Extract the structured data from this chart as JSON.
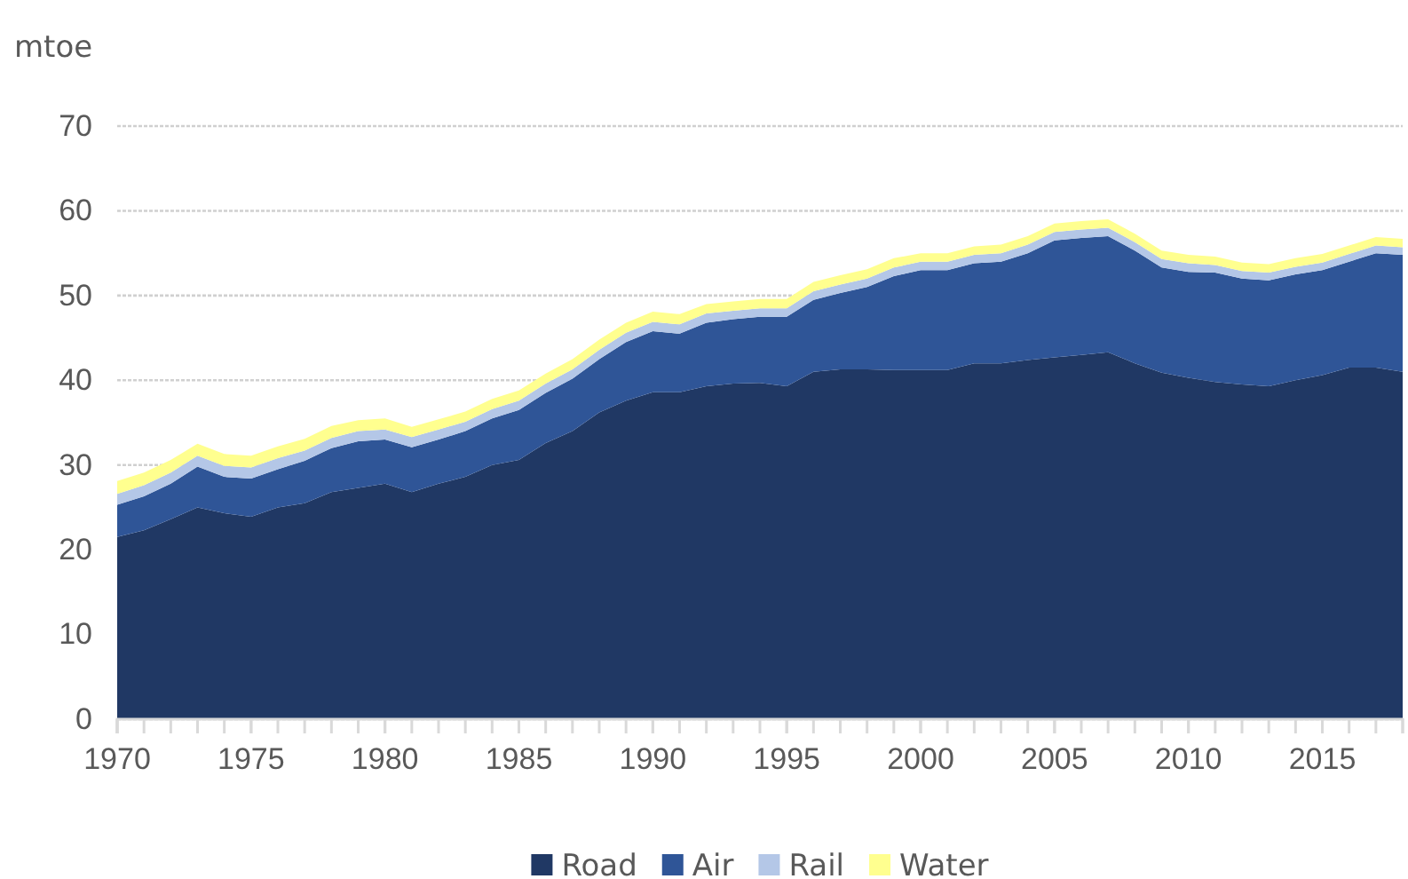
{
  "chart_data": {
    "type": "area",
    "stacked": true,
    "ylabel": "mtoe",
    "x": [
      1970,
      1971,
      1972,
      1973,
      1974,
      1975,
      1976,
      1977,
      1978,
      1979,
      1980,
      1981,
      1982,
      1983,
      1984,
      1985,
      1986,
      1987,
      1988,
      1989,
      1990,
      1991,
      1992,
      1993,
      1994,
      1995,
      1996,
      1997,
      1998,
      1999,
      2000,
      2001,
      2002,
      2003,
      2004,
      2005,
      2006,
      2007,
      2008,
      2009,
      2010,
      2011,
      2012,
      2013,
      2014,
      2015,
      2016,
      2017,
      2018
    ],
    "series": [
      {
        "name": "Road",
        "color": "#203864",
        "values": [
          21.5,
          22.3,
          23.6,
          25,
          24.3,
          23.9,
          25,
          25.5,
          26.8,
          27.3,
          27.8,
          26.8,
          27.8,
          28.6,
          30,
          30.6,
          32.6,
          34,
          36.2,
          37.6,
          38.6,
          38.6,
          39.3,
          39.6,
          39.7,
          39.3,
          41,
          41.3,
          41.3,
          41.2,
          41.2,
          41.2,
          42,
          42,
          42.4,
          42.7,
          43,
          43.3,
          42,
          40.9,
          40.3,
          39.8,
          39.5,
          39.3,
          40,
          40.6,
          41.5,
          41.5,
          41
        ]
      },
      {
        "name": "Air",
        "color": "#2f5597",
        "values": [
          3.8,
          4,
          4.2,
          4.8,
          4.3,
          4.5,
          4.5,
          5,
          5.2,
          5.5,
          5.2,
          5.3,
          5.2,
          5.4,
          5.5,
          5.9,
          5.9,
          6.2,
          6.3,
          6.9,
          7.2,
          6.9,
          7.5,
          7.6,
          7.8,
          8.2,
          8.5,
          9,
          9.7,
          11.1,
          11.8,
          11.8,
          11.8,
          12,
          12.6,
          13.8,
          13.8,
          13.7,
          13.3,
          12.4,
          12.5,
          12.9,
          12.5,
          12.5,
          12.5,
          12.4,
          12.5,
          13.5,
          13.8
        ]
      },
      {
        "name": "Rail",
        "color": "#b4c7e7",
        "values": [
          1.3,
          1.3,
          1.3,
          1.3,
          1.3,
          1.3,
          1.3,
          1.2,
          1.2,
          1.2,
          1.2,
          1.2,
          1.2,
          1.1,
          1.1,
          1.1,
          1.1,
          1.1,
          1.1,
          1.1,
          1.1,
          1.1,
          1.1,
          1,
          1,
          1,
          1,
          1,
          1,
          1,
          1,
          1,
          1,
          1,
          1,
          1,
          1,
          1,
          1,
          1,
          1,
          0.9,
          0.9,
          0.9,
          0.9,
          0.9,
          0.9,
          0.9,
          0.9
        ]
      },
      {
        "name": "Water",
        "color": "#ffff8f",
        "values": [
          1.5,
          1.5,
          1.5,
          1.4,
          1.4,
          1.4,
          1.4,
          1.4,
          1.4,
          1.3,
          1.3,
          1.2,
          1.2,
          1.2,
          1.2,
          1.2,
          1.2,
          1.2,
          1.2,
          1.2,
          1.2,
          1.2,
          1.1,
          1.1,
          1.1,
          1.1,
          1.1,
          1.1,
          1.1,
          1.1,
          1,
          1,
          1,
          1,
          1,
          1,
          1,
          1,
          1,
          1,
          1,
          1,
          1,
          1,
          1,
          1,
          1,
          1,
          1
        ]
      }
    ],
    "xlim": [
      1970,
      2018
    ],
    "xticks": [
      1970,
      1975,
      1980,
      1985,
      1990,
      1995,
      2000,
      2005,
      2010,
      2015
    ],
    "ylim": [
      0,
      70
    ],
    "yticks": [
      0,
      10,
      20,
      30,
      40,
      50,
      60,
      70
    ],
    "grid": "y",
    "legend": "bottom"
  }
}
